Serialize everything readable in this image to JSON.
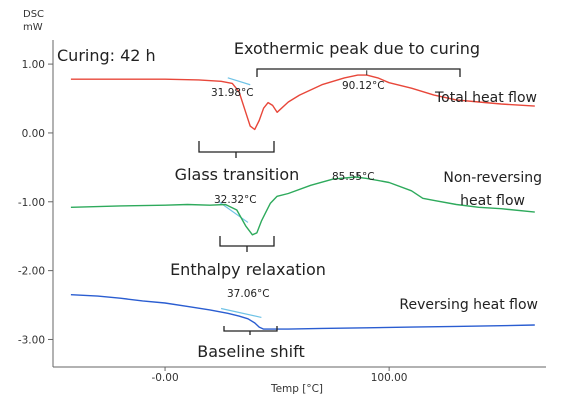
{
  "chart_data": {
    "type": "line",
    "y_unit_top": "DSC",
    "y_unit_bottom": "mW",
    "xlabel": "Temp [°C]",
    "ylim": [
      -3.4,
      1.35
    ],
    "xlim": [
      -50,
      170
    ],
    "y_ticks": [
      {
        "value": 1.0,
        "label": "1.00"
      },
      {
        "value": 0.0,
        "label": "0.00"
      },
      {
        "value": -1.0,
        "label": "-1.00"
      },
      {
        "value": -2.0,
        "label": "-2.00"
      },
      {
        "value": -3.0,
        "label": "-3.00"
      }
    ],
    "x_ticks": [
      {
        "value": 0,
        "label": "-0.00"
      },
      {
        "value": 100,
        "label": "100.00"
      }
    ],
    "series": [
      {
        "name": "Total heat flow",
        "color": "#e8473a",
        "x": [
          -42,
          -20,
          0,
          15,
          25,
          30,
          33,
          36,
          38,
          40,
          42,
          44,
          46,
          48,
          50,
          55,
          60,
          70,
          80,
          86,
          90,
          95,
          100,
          110,
          120,
          130,
          140,
          150,
          165
        ],
        "y": [
          0.78,
          0.78,
          0.78,
          0.77,
          0.75,
          0.72,
          0.6,
          0.3,
          0.1,
          0.05,
          0.18,
          0.36,
          0.44,
          0.4,
          0.3,
          0.45,
          0.55,
          0.7,
          0.8,
          0.84,
          0.84,
          0.8,
          0.73,
          0.65,
          0.55,
          0.48,
          0.45,
          0.42,
          0.39
        ]
      },
      {
        "name": "Non-reversing heat flow",
        "color": "#2eaa5c",
        "x": [
          -42,
          -20,
          0,
          10,
          20,
          27,
          32,
          36,
          39,
          41,
          43,
          45,
          47,
          50,
          55,
          65,
          75,
          85,
          90,
          100,
          110,
          115,
          120,
          130,
          140,
          150,
          165
        ],
        "y": [
          -1.08,
          -1.06,
          -1.05,
          -1.04,
          -1.05,
          -1.04,
          -1.12,
          -1.35,
          -1.48,
          -1.45,
          -1.28,
          -1.15,
          -1.02,
          -0.92,
          -0.88,
          -0.76,
          -0.67,
          -0.64,
          -0.66,
          -0.72,
          -0.84,
          -0.95,
          -0.98,
          -1.04,
          -1.08,
          -1.1,
          -1.15
        ]
      },
      {
        "name": "Reversing heat flow",
        "color": "#2a5dd1",
        "x": [
          -42,
          -30,
          -20,
          -10,
          0,
          10,
          20,
          28,
          33,
          37,
          40,
          42,
          44,
          48,
          55,
          70,
          90,
          110,
          130,
          150,
          165
        ],
        "y": [
          -2.35,
          -2.37,
          -2.4,
          -2.44,
          -2.47,
          -2.52,
          -2.57,
          -2.62,
          -2.66,
          -2.7,
          -2.76,
          -2.82,
          -2.85,
          -2.85,
          -2.85,
          -2.84,
          -2.83,
          -2.82,
          -2.81,
          -2.8,
          -2.79
        ]
      }
    ],
    "tangent_lines": [
      {
        "x": [
          28,
          38
        ],
        "y": [
          0.8,
          0.7
        ]
      },
      {
        "x": [
          24,
          37
        ],
        "y": [
          -1.0,
          -1.3
        ]
      },
      {
        "x": [
          25,
          43
        ],
        "y": [
          -2.55,
          -2.68
        ]
      }
    ],
    "annotations": {
      "title": "Curing: 42 h",
      "exothermic": "Exothermic peak due to curing",
      "total_label": "Total heat flow",
      "nonrev_label_1": "Non-reversing",
      "nonrev_label_2": "heat flow",
      "rev_label": "Reversing heat flow",
      "glass_transition": "Glass transition",
      "enthalpy_relaxation": "Enthalpy relaxation",
      "baseline_shift": "Baseline shift",
      "pt_total_tg": "31.98°C",
      "pt_total_peak": "90.12°C",
      "pt_nonrev_tg": "32.32°C",
      "pt_nonrev_peak": "85.55°C",
      "pt_rev_tg": "37.06°C"
    },
    "grid": false,
    "legend": "none"
  }
}
